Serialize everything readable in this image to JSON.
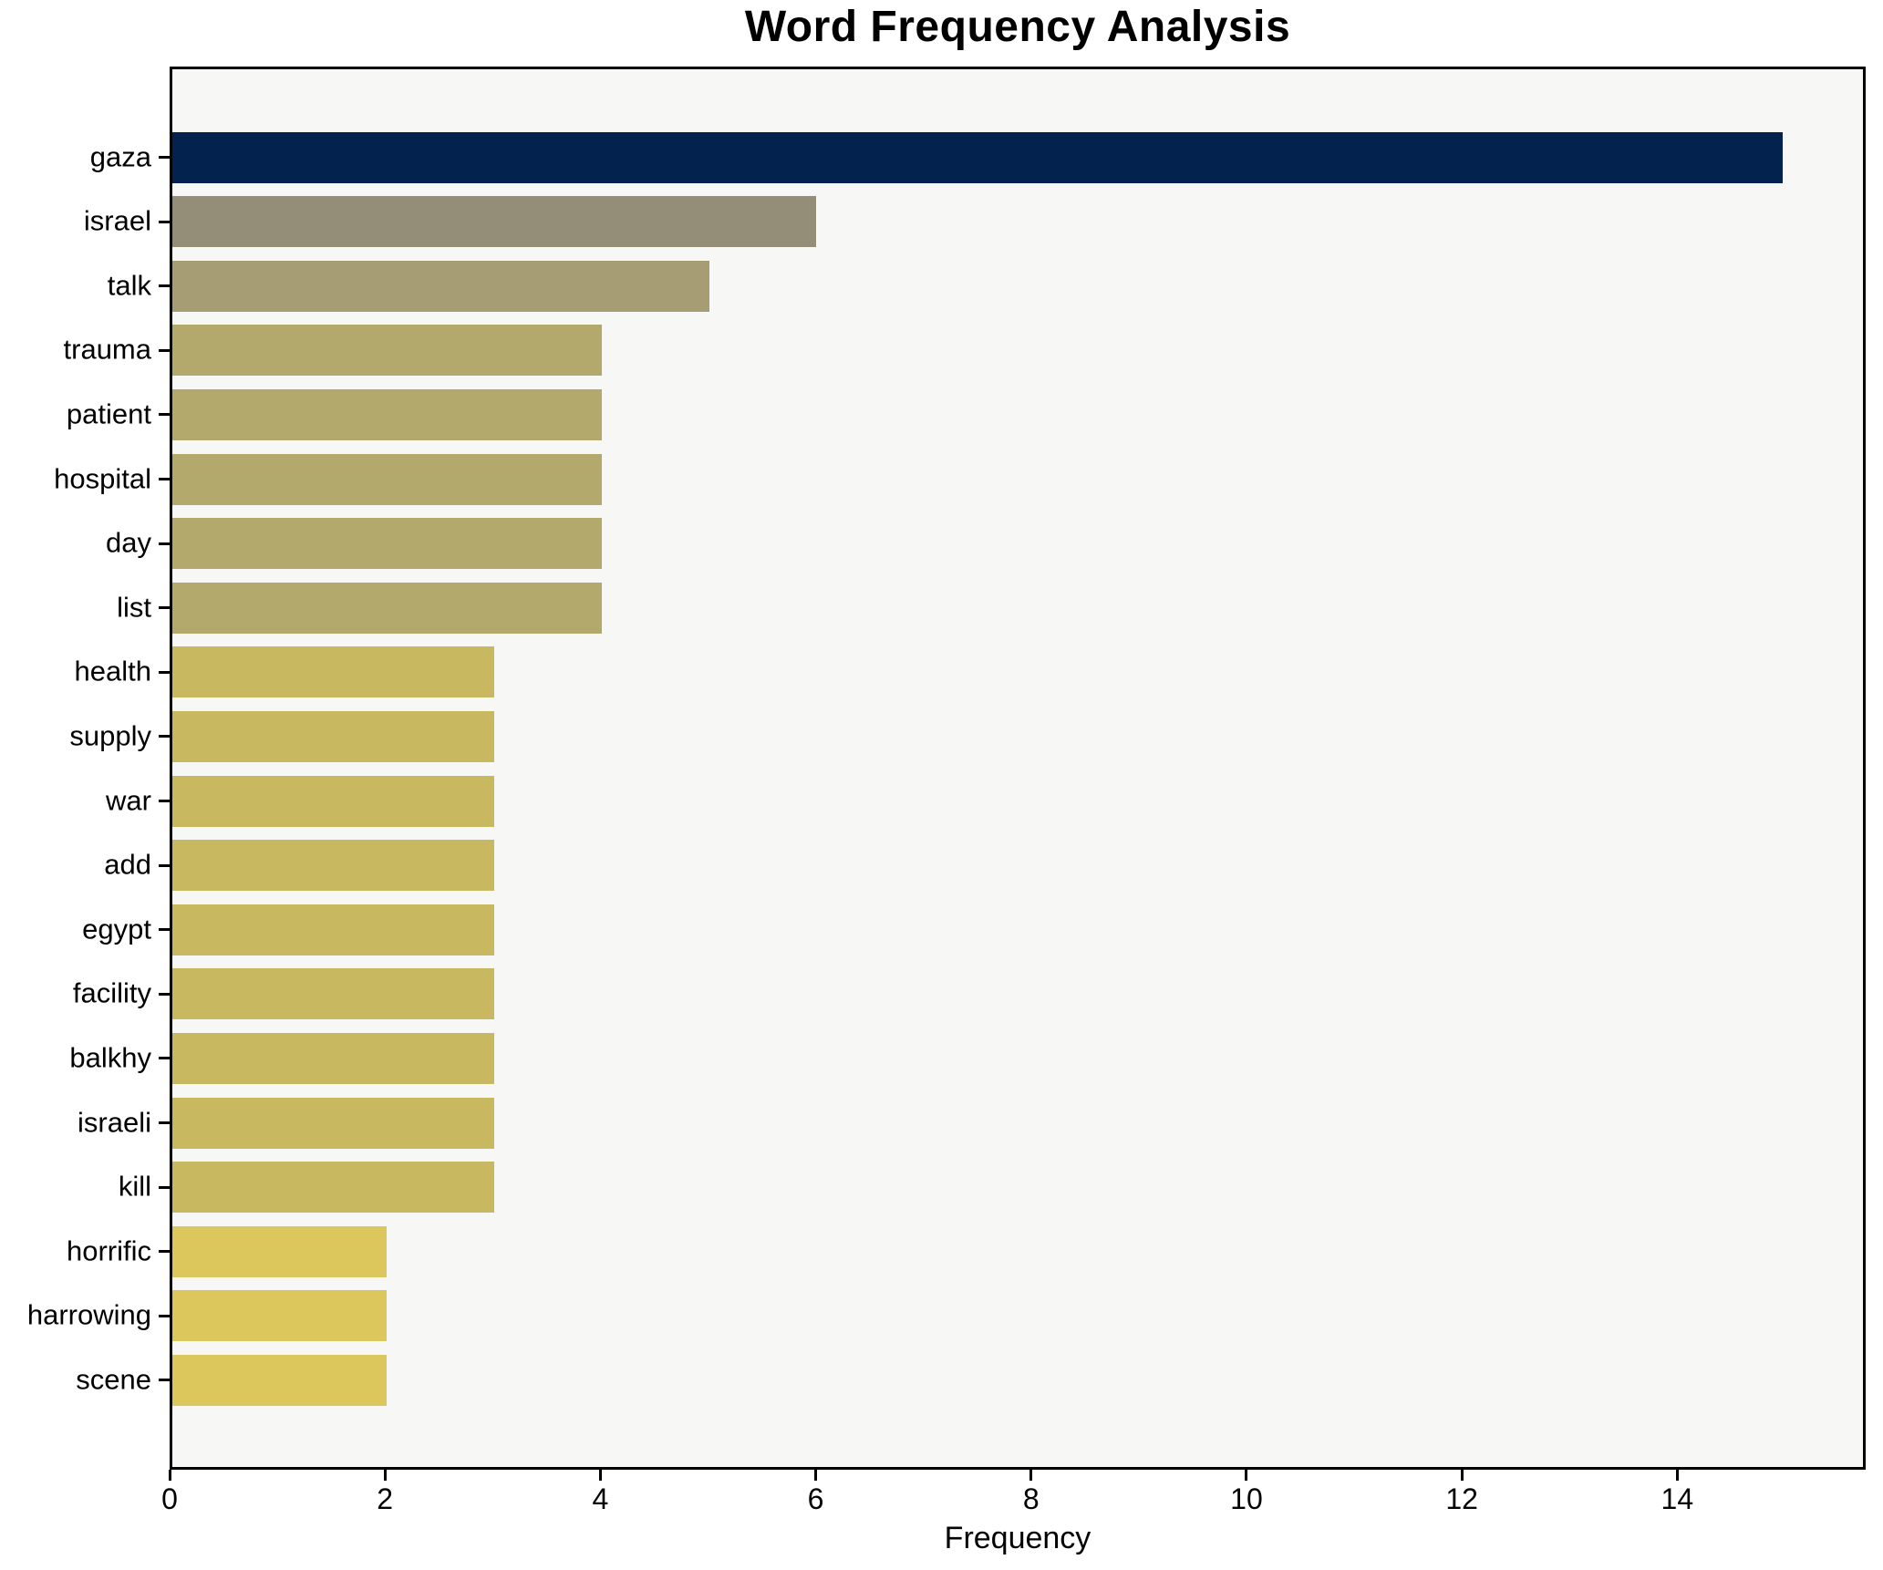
{
  "chart_data": {
    "type": "bar",
    "orientation": "horizontal",
    "title": "Word Frequency Analysis",
    "xlabel": "Frequency",
    "ylabel": "",
    "categories": [
      "gaza",
      "israel",
      "talk",
      "trauma",
      "patient",
      "hospital",
      "day",
      "list",
      "health",
      "supply",
      "war",
      "add",
      "egypt",
      "facility",
      "balkhy",
      "israeli",
      "kill",
      "horrific",
      "harrowing",
      "scene"
    ],
    "values": [
      15,
      6,
      5,
      4,
      4,
      4,
      4,
      4,
      3,
      3,
      3,
      3,
      3,
      3,
      3,
      3,
      3,
      2,
      2,
      2
    ],
    "bar_colors": [
      "#03234e",
      "#948d77",
      "#a69d74",
      "#b4a96c",
      "#b4a96c",
      "#b4a96c",
      "#b4a96c",
      "#b4a96c",
      "#c8b960",
      "#c8b960",
      "#c8b960",
      "#c8b960",
      "#c8b960",
      "#c8b960",
      "#c8b960",
      "#c8b960",
      "#c8b960",
      "#dcc75c",
      "#dcc75c",
      "#dcc75c"
    ],
    "xlim": [
      0,
      15.75
    ],
    "xticks": [
      0,
      2,
      4,
      6,
      8,
      10,
      12,
      14
    ],
    "grid": false,
    "legend": false,
    "plot_background": "#f7f7f5",
    "figure_background": "#ffffff",
    "spine_color": "#000000",
    "bar_color_scheme": "cividis"
  }
}
